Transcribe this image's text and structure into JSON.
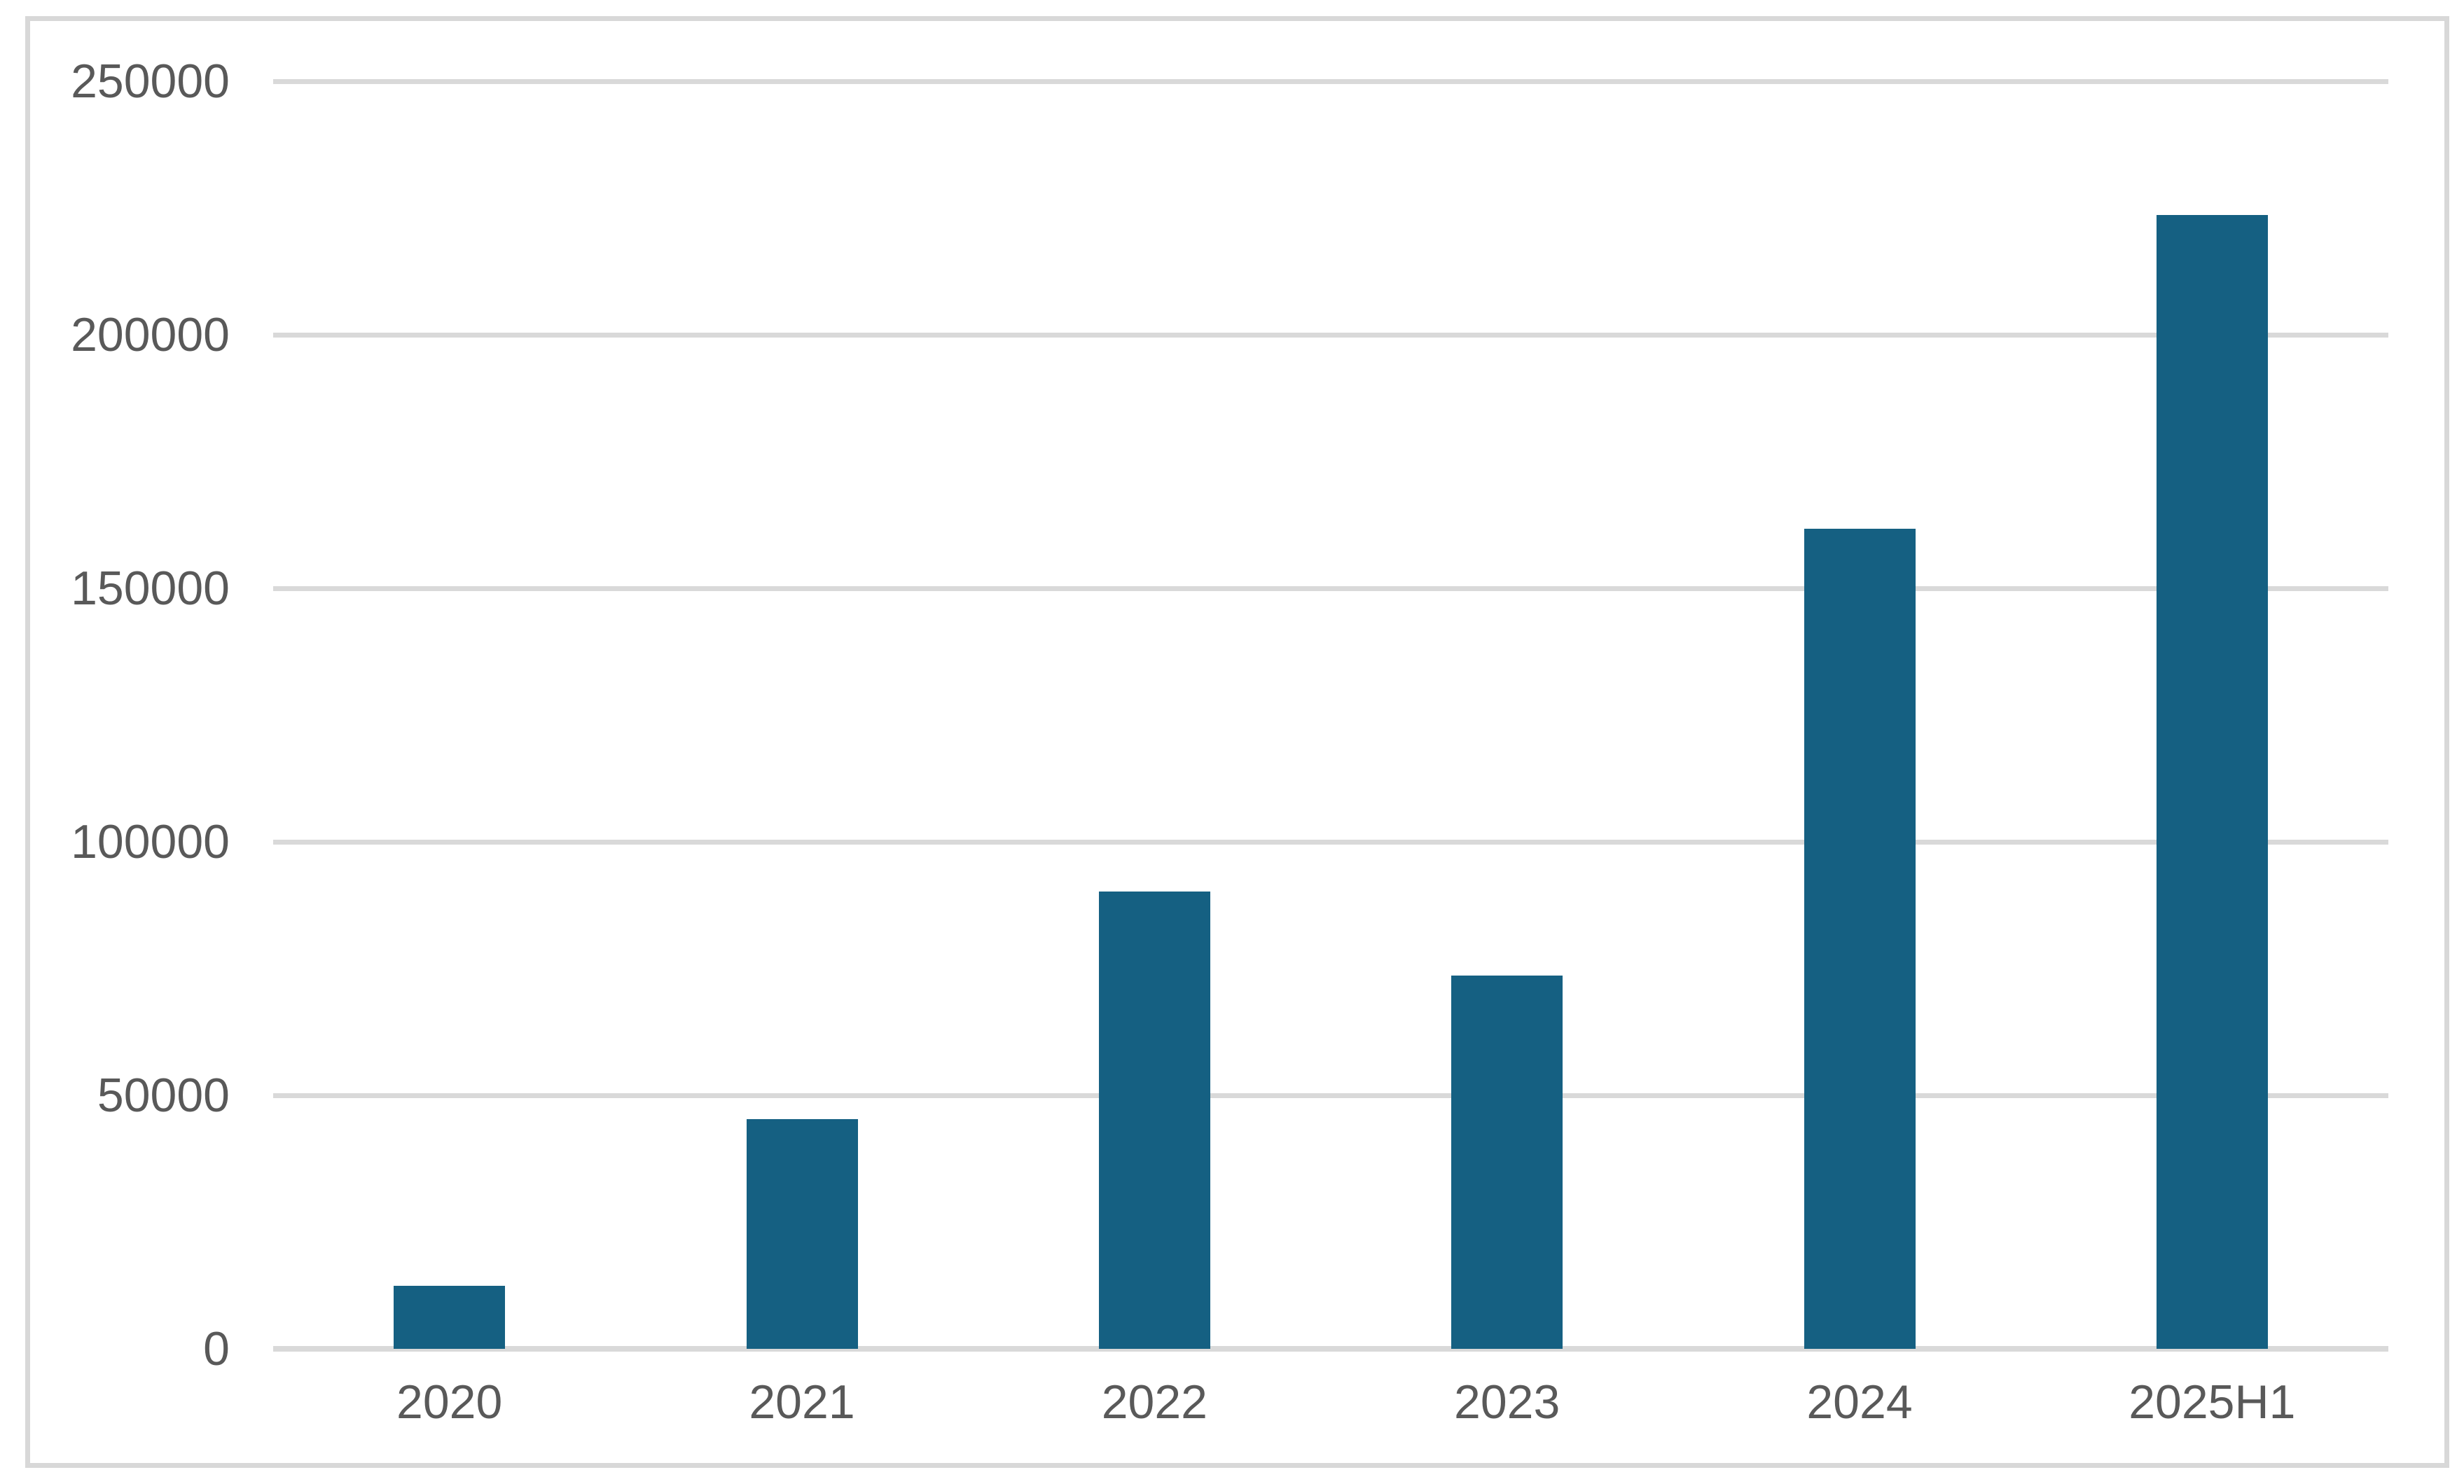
{
  "chart_data": {
    "type": "bar",
    "title": "",
    "xlabel": "",
    "ylabel": "",
    "categories": [
      "2020",
      "2021",
      "2022",
      "2023",
      "2024",
      "2025H1"
    ],
    "values": [
      12400,
      45300,
      90200,
      73600,
      161800,
      223600
    ],
    "series_name": "",
    "y_ticks": [
      0,
      50000,
      100000,
      150000,
      200000,
      250000
    ],
    "y_tick_labels": [
      "0",
      "50000",
      "100000",
      "150000",
      "200000",
      "250000"
    ],
    "ylim": [
      0,
      250000
    ],
    "grid": "horizontal-on",
    "legend": "none",
    "colors": {
      "bar": "#156082",
      "gridline": "#d9d9d9",
      "axis_text": "#595959",
      "frame_border": "#d8d8d8",
      "background": "#ffffff"
    }
  }
}
